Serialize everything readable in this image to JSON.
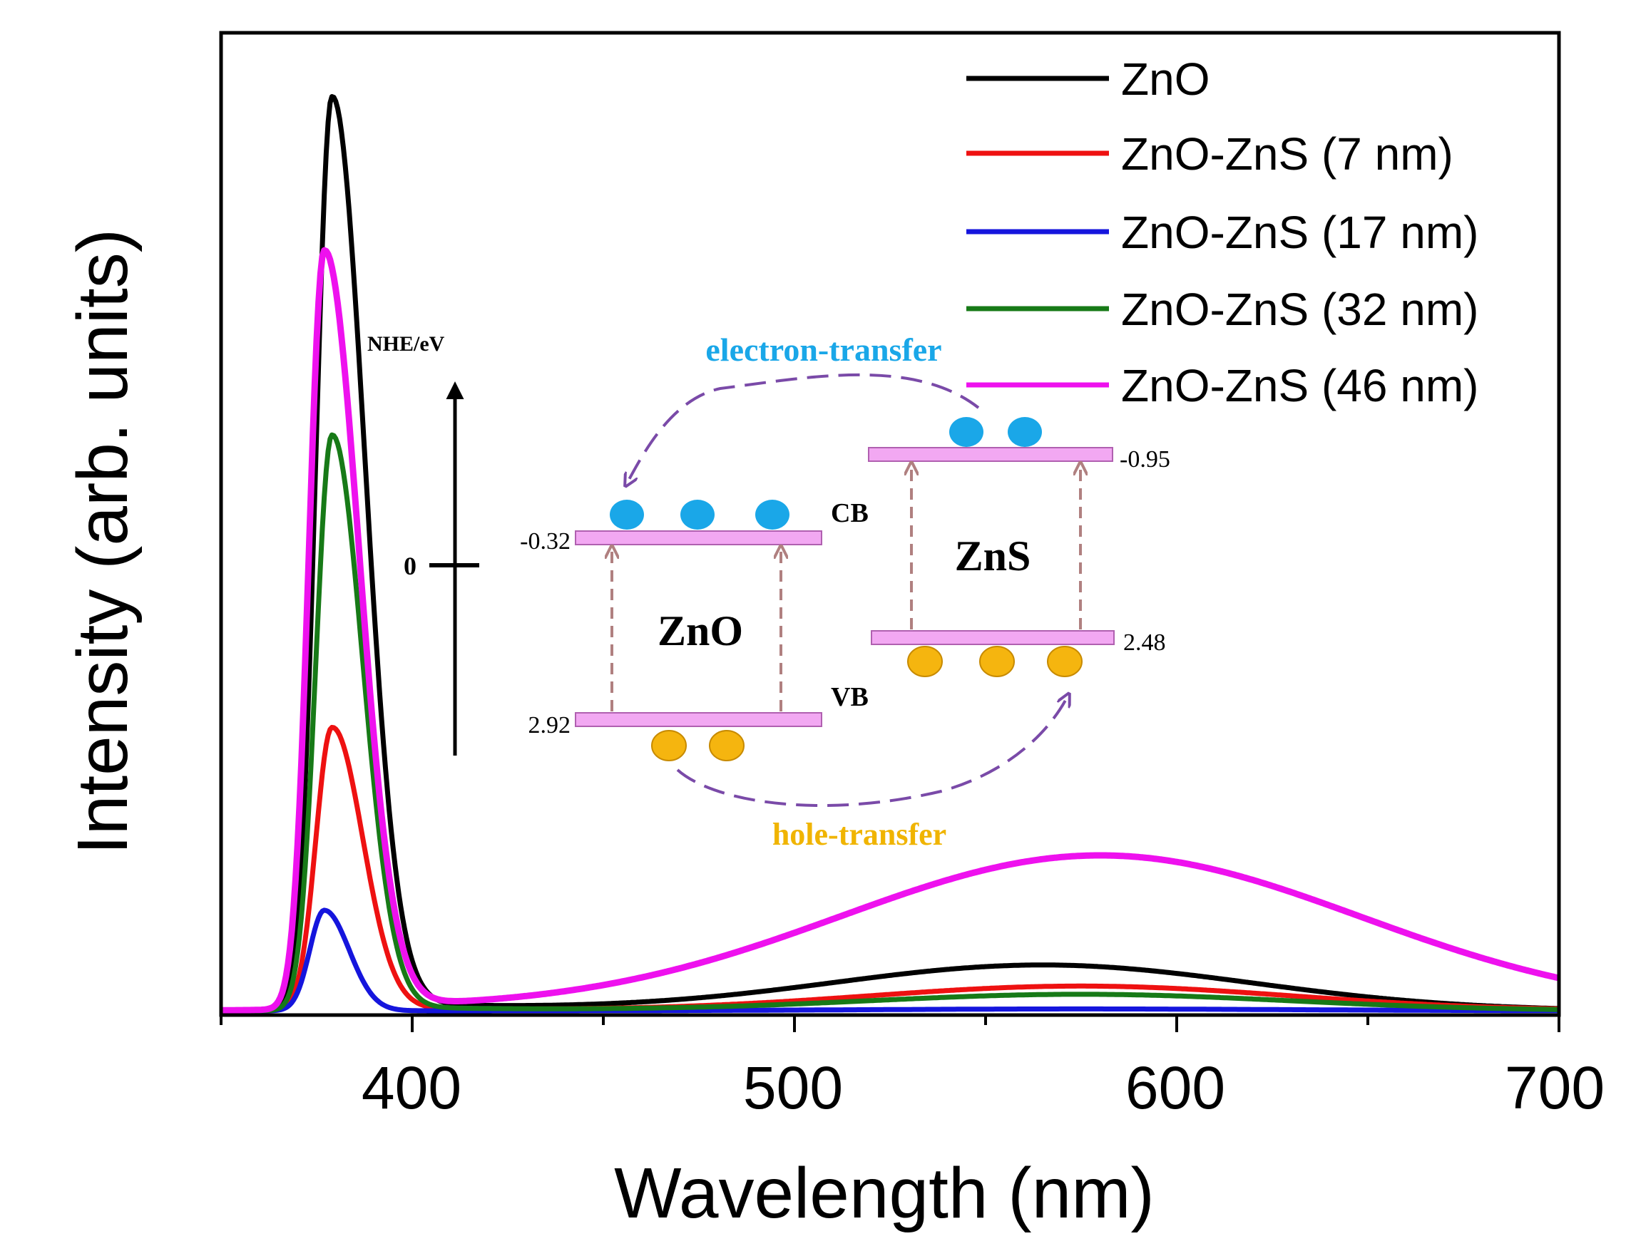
{
  "chart_data": {
    "type": "line",
    "title": "",
    "xlabel": "Wavelength (nm)",
    "ylabel": "Intensity (arb. units)",
    "xlim": [
      350,
      700
    ],
    "ylim": [
      0,
      1.07
    ],
    "xticks": [
      400,
      500,
      600,
      700
    ],
    "xtick_labels": [
      "400",
      "500",
      "600",
      "700"
    ],
    "legend_position": "top-right",
    "series": [
      {
        "name": "ZnO",
        "color": "#000000",
        "uv": {
          "peak_nm": 379,
          "height": 1.0,
          "sigma_left": 4.2,
          "sigma_right": 8.5,
          "tail": 0.012
        },
        "visible": {
          "center_nm": 565,
          "height": 0.05,
          "sigma": 55
        }
      },
      {
        "name": "ZnO-ZnS (7 nm)",
        "color": "#ee1111",
        "uv": {
          "peak_nm": 379,
          "height": 0.31,
          "sigma_left": 4.2,
          "sigma_right": 8.0,
          "tail": 0.004
        },
        "visible": {
          "center_nm": 575,
          "height": 0.027,
          "sigma": 55
        }
      },
      {
        "name": "ZnO-ZnS (17 nm)",
        "color": "#1515dd",
        "uv": {
          "peak_nm": 377,
          "height": 0.11,
          "sigma_left": 3.8,
          "sigma_right": 6.5,
          "tail": 0.0
        },
        "visible": {
          "center_nm": 575,
          "height": 0.002,
          "sigma": 55
        }
      },
      {
        "name": "ZnO-ZnS (32 nm)",
        "color": "#177a17",
        "uv": {
          "peak_nm": 379,
          "height": 0.63,
          "sigma_left": 4.2,
          "sigma_right": 8.0,
          "tail": 0.006
        },
        "visible": {
          "center_nm": 575,
          "height": 0.018,
          "sigma": 55
        }
      },
      {
        "name": "ZnO-ZnS (46 nm)",
        "color": "#ee11ee",
        "uv": {
          "peak_nm": 377,
          "height": 0.83,
          "sigma_left": 4.0,
          "sigma_right": 9.0,
          "tail": 0.005
        },
        "visible": {
          "center_nm": 580,
          "height": 0.17,
          "sigma": 68
        }
      }
    ]
  },
  "inset": {
    "axis_label": "NHE/eV",
    "zero_label": "0",
    "electron_transfer": "electron-transfer",
    "hole_transfer": "hole-transfer",
    "zno_label": "ZnO",
    "zns_label": "ZnS",
    "cb_label": "CB",
    "vb_label": "VB",
    "zno_cb_value": "-0.32",
    "zno_vb_value": "2.92",
    "zns_cb_value": "-0.95",
    "zns_vb_value": "2.48",
    "colors": {
      "band": "#f2a8f2",
      "band_edge": "#b060b0",
      "electron": "#1aa7e8",
      "hole": "#f5b50f",
      "transfer_arrow": "#7a4aa8",
      "excitation_arrow": "#b08080",
      "electron_label": "#1aa7e8",
      "hole_label": "#f0b400"
    }
  }
}
